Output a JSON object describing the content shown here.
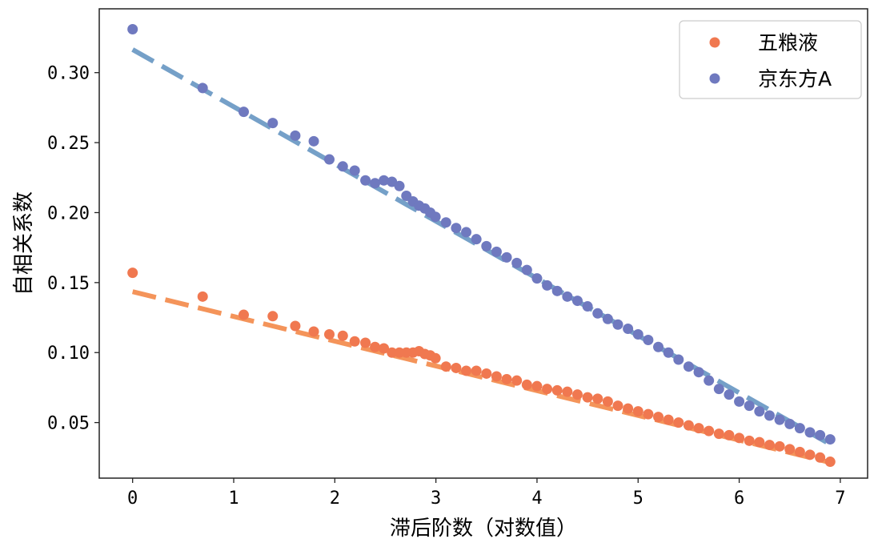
{
  "chart_data": {
    "type": "scatter",
    "title": "",
    "xlabel": "滞后阶数（对数值）",
    "ylabel": "自相关系数",
    "xlim": [
      -0.33,
      7.27
    ],
    "ylim": [
      0.0103,
      0.3456
    ],
    "xticks": [
      0,
      1,
      2,
      3,
      4,
      5,
      6,
      7
    ],
    "xtick_labels": [
      "0",
      "1",
      "2",
      "3",
      "4",
      "5",
      "6",
      "7"
    ],
    "yticks": [
      0.05,
      0.1,
      0.15,
      0.2,
      0.25,
      0.3
    ],
    "ytick_labels": [
      "0.05",
      "0.10",
      "0.15",
      "0.20",
      "0.25",
      "0.30"
    ],
    "grid": false,
    "legend_position": "top-right",
    "series": [
      {
        "name": "五粮液",
        "color": "#f07850",
        "fit_color": "#f4945a",
        "fit_line": {
          "x": [
            0,
            6.9
          ],
          "y": [
            0.1435,
            0.0215
          ]
        },
        "x": [
          0,
          0.693,
          1.099,
          1.386,
          1.609,
          1.792,
          1.946,
          2.079,
          2.197,
          2.303,
          2.398,
          2.485,
          2.565,
          2.639,
          2.708,
          2.773,
          2.833,
          2.89,
          2.944,
          2.996,
          3.1,
          3.2,
          3.3,
          3.4,
          3.5,
          3.6,
          3.7,
          3.8,
          3.9,
          4.0,
          4.1,
          4.2,
          4.3,
          4.4,
          4.5,
          4.6,
          4.7,
          4.8,
          4.9,
          5.0,
          5.1,
          5.2,
          5.3,
          5.4,
          5.5,
          5.6,
          5.7,
          5.8,
          5.9,
          6.0,
          6.1,
          6.2,
          6.3,
          6.4,
          6.5,
          6.6,
          6.7,
          6.8,
          6.9
        ],
        "y": [
          0.157,
          0.14,
          0.127,
          0.126,
          0.119,
          0.115,
          0.113,
          0.112,
          0.108,
          0.107,
          0.104,
          0.103,
          0.1,
          0.1,
          0.1,
          0.1,
          0.101,
          0.099,
          0.098,
          0.096,
          0.09,
          0.089,
          0.087,
          0.087,
          0.085,
          0.083,
          0.081,
          0.08,
          0.077,
          0.076,
          0.074,
          0.073,
          0.072,
          0.07,
          0.068,
          0.067,
          0.065,
          0.062,
          0.06,
          0.058,
          0.056,
          0.054,
          0.052,
          0.05,
          0.048,
          0.046,
          0.044,
          0.042,
          0.041,
          0.039,
          0.037,
          0.036,
          0.034,
          0.033,
          0.031,
          0.029,
          0.027,
          0.025,
          0.022
        ]
      },
      {
        "name": "京东方A",
        "color": "#6f79bf",
        "fit_color": "#75a0c8",
        "fit_line": {
          "x": [
            0,
            6.9
          ],
          "y": [
            0.3165,
            0.0345
          ]
        },
        "x": [
          0,
          0.693,
          1.099,
          1.386,
          1.609,
          1.792,
          1.946,
          2.079,
          2.197,
          2.303,
          2.398,
          2.485,
          2.565,
          2.639,
          2.708,
          2.773,
          2.833,
          2.89,
          2.944,
          2.996,
          3.1,
          3.2,
          3.3,
          3.4,
          3.5,
          3.6,
          3.7,
          3.8,
          3.9,
          4.0,
          4.1,
          4.2,
          4.3,
          4.4,
          4.5,
          4.6,
          4.7,
          4.8,
          4.9,
          5.0,
          5.1,
          5.2,
          5.3,
          5.4,
          5.5,
          5.6,
          5.7,
          5.8,
          5.9,
          6.0,
          6.1,
          6.2,
          6.3,
          6.4,
          6.5,
          6.6,
          6.7,
          6.8,
          6.9
        ],
        "y": [
          0.331,
          0.289,
          0.272,
          0.264,
          0.255,
          0.251,
          0.238,
          0.233,
          0.23,
          0.223,
          0.221,
          0.223,
          0.222,
          0.219,
          0.212,
          0.208,
          0.205,
          0.203,
          0.2,
          0.197,
          0.193,
          0.189,
          0.186,
          0.181,
          0.176,
          0.172,
          0.168,
          0.164,
          0.159,
          0.153,
          0.148,
          0.144,
          0.14,
          0.137,
          0.133,
          0.128,
          0.124,
          0.12,
          0.117,
          0.113,
          0.109,
          0.104,
          0.1,
          0.095,
          0.09,
          0.086,
          0.08,
          0.074,
          0.07,
          0.065,
          0.062,
          0.058,
          0.055,
          0.052,
          0.049,
          0.046,
          0.043,
          0.041,
          0.038
        ]
      }
    ]
  }
}
